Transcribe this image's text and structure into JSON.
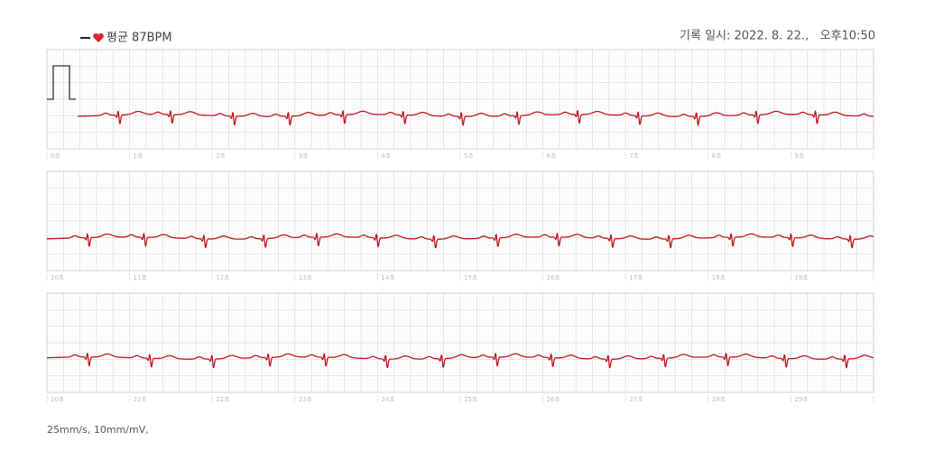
{
  "header": {
    "legend": "평균 87BPM",
    "recorded": "기록 일시: 2022. 8. 22.,   오후10:50"
  },
  "strips": [
    {
      "second_labels": [
        "0초",
        "1초",
        "2초",
        "3초",
        "4초",
        "5초",
        "6초",
        "7초",
        "8초",
        "9초"
      ]
    },
    {
      "second_labels": [
        "10초",
        "11초",
        "12초",
        "13초",
        "14초",
        "15초",
        "16초",
        "17초",
        "18초",
        "19초"
      ]
    },
    {
      "second_labels": [
        "20초",
        "21초",
        "22초",
        "23초",
        "24초",
        "25초",
        "26초",
        "27초",
        "28초",
        "29초"
      ]
    }
  ],
  "footer": "25mm/s, 10mm/mV,"
}
